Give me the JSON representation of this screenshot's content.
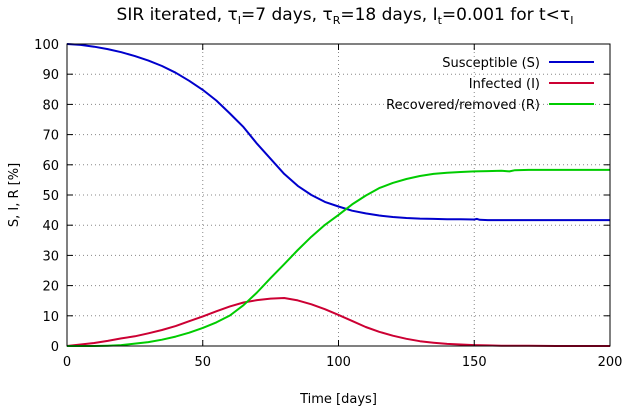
{
  "chart_data": {
    "type": "line",
    "title": {
      "prefix": "SIR iterated, ",
      "tau_symbol": "τ",
      "tau_i_sub": "I",
      "tau_i_value": "=7 days, ",
      "tau_r_sub": "R",
      "tau_r_value": "=18 days, ",
      "i_symbol": "I",
      "i_sub": "t",
      "i_value": "=0.001 for t<",
      "last_sub": "I"
    },
    "xlabel": "Time [days]",
    "ylabel": "S, I, R [%]",
    "xlim": [
      0,
      200
    ],
    "ylim": [
      0,
      100
    ],
    "x_ticks": [
      0,
      50,
      100,
      150,
      200
    ],
    "y_ticks": [
      0,
      10,
      20,
      30,
      40,
      50,
      60,
      70,
      80,
      90,
      100
    ],
    "grid": true,
    "legend_position": "top-right",
    "series": [
      {
        "name": "Susceptible (S)",
        "color": "#0000cc",
        "points": [
          [
            0,
            100
          ],
          [
            5,
            99.7
          ],
          [
            10,
            99.1
          ],
          [
            15,
            98.3
          ],
          [
            20,
            97.3
          ],
          [
            25,
            96
          ],
          [
            30,
            94.5
          ],
          [
            35,
            92.7
          ],
          [
            40,
            90.5
          ],
          [
            45,
            87.8
          ],
          [
            50,
            84.8
          ],
          [
            55,
            81.3
          ],
          [
            60,
            77
          ],
          [
            65,
            72.5
          ],
          [
            70,
            67
          ],
          [
            75,
            62
          ],
          [
            80,
            57
          ],
          [
            85,
            53
          ],
          [
            90,
            50
          ],
          [
            95,
            47.7
          ],
          [
            100,
            46.2
          ],
          [
            105,
            44.8
          ],
          [
            110,
            43.9
          ],
          [
            115,
            43.2
          ],
          [
            120,
            42.7
          ],
          [
            125,
            42.4
          ],
          [
            130,
            42.2
          ],
          [
            135,
            42.1
          ],
          [
            140,
            42
          ],
          [
            145,
            42
          ],
          [
            150,
            41.9
          ],
          [
            151,
            42.1
          ],
          [
            152,
            41.8
          ],
          [
            155,
            41.7
          ],
          [
            160,
            41.7
          ],
          [
            170,
            41.7
          ],
          [
            180,
            41.7
          ],
          [
            190,
            41.7
          ],
          [
            200,
            41.7
          ]
        ]
      },
      {
        "name": "Infected (I)",
        "color": "#cc0033",
        "points": [
          [
            0,
            0
          ],
          [
            5,
            0.5
          ],
          [
            10,
            1
          ],
          [
            15,
            1.7
          ],
          [
            20,
            2.5
          ],
          [
            25,
            3.2
          ],
          [
            30,
            4.2
          ],
          [
            35,
            5.3
          ],
          [
            40,
            6.6
          ],
          [
            45,
            8.2
          ],
          [
            50,
            9.8
          ],
          [
            55,
            11.5
          ],
          [
            60,
            13.1
          ],
          [
            65,
            14.4
          ],
          [
            70,
            15.2
          ],
          [
            75,
            15.7
          ],
          [
            80,
            15.9
          ],
          [
            85,
            15.1
          ],
          [
            90,
            13.8
          ],
          [
            95,
            12.2
          ],
          [
            100,
            10.3
          ],
          [
            105,
            8.3
          ],
          [
            110,
            6.3
          ],
          [
            115,
            4.7
          ],
          [
            120,
            3.4
          ],
          [
            125,
            2.4
          ],
          [
            130,
            1.6
          ],
          [
            135,
            1.1
          ],
          [
            140,
            0.7
          ],
          [
            145,
            0.5
          ],
          [
            150,
            0.3
          ],
          [
            155,
            0.2
          ],
          [
            160,
            0.1
          ],
          [
            170,
            0.1
          ],
          [
            180,
            0
          ],
          [
            190,
            0
          ],
          [
            200,
            0
          ]
        ]
      },
      {
        "name": "Recovered/removed (R)",
        "color": "#00cc00",
        "points": [
          [
            0,
            0
          ],
          [
            10,
            0
          ],
          [
            15,
            0.1
          ],
          [
            20,
            0.3
          ],
          [
            25,
            0.8
          ],
          [
            30,
            1.3
          ],
          [
            35,
            2.1
          ],
          [
            40,
            3.1
          ],
          [
            45,
            4.4
          ],
          [
            50,
            6
          ],
          [
            55,
            7.8
          ],
          [
            60,
            10.1
          ],
          [
            65,
            13.5
          ],
          [
            70,
            17.7
          ],
          [
            75,
            22.5
          ],
          [
            80,
            27.1
          ],
          [
            85,
            31.8
          ],
          [
            90,
            36.2
          ],
          [
            95,
            40.1
          ],
          [
            100,
            43.4
          ],
          [
            105,
            46.9
          ],
          [
            110,
            49.8
          ],
          [
            115,
            52.3
          ],
          [
            120,
            54
          ],
          [
            125,
            55.3
          ],
          [
            130,
            56.3
          ],
          [
            135,
            57
          ],
          [
            140,
            57.4
          ],
          [
            145,
            57.6
          ],
          [
            150,
            57.8
          ],
          [
            155,
            57.9
          ],
          [
            160,
            58
          ],
          [
            163,
            57.8
          ],
          [
            165,
            58.2
          ],
          [
            170,
            58.3
          ],
          [
            180,
            58.3
          ],
          [
            190,
            58.3
          ],
          [
            200,
            58.3
          ]
        ]
      }
    ]
  }
}
